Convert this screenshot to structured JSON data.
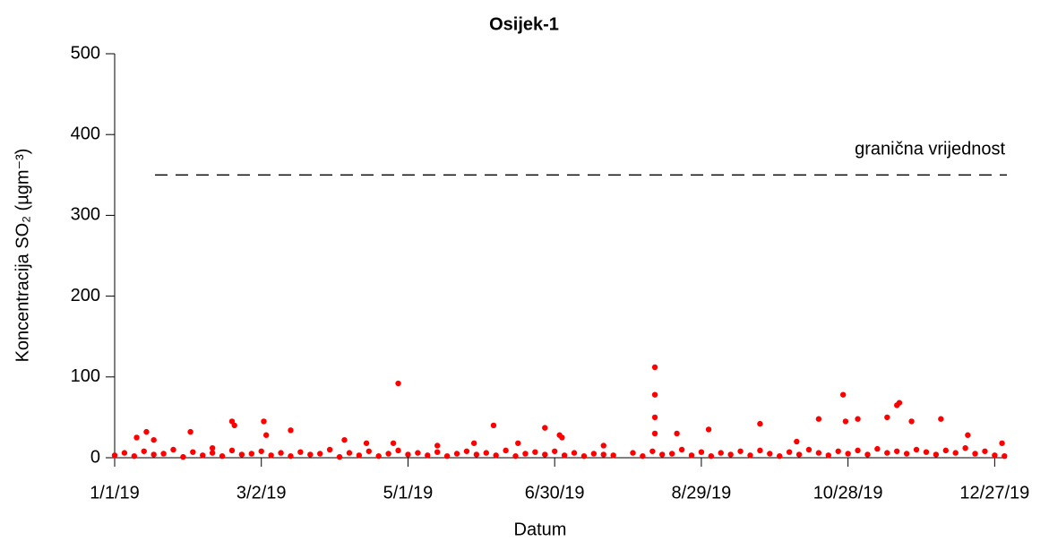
{
  "chart_data": {
    "type": "scatter",
    "title": "Osijek-1",
    "x_label": "Datum",
    "y_label": "Koncentracija SO₂ (µgm⁻³)",
    "color": "#ff0000",
    "x": [
      "2019-01-01",
      "2019-01-05",
      "2019-01-09",
      "2019-01-13",
      "2019-01-17",
      "2019-01-21",
      "2019-01-25",
      "2019-01-29",
      "2019-02-02",
      "2019-02-06",
      "2019-02-10",
      "2019-02-14",
      "2019-02-18",
      "2019-02-22",
      "2019-02-26",
      "2019-03-02",
      "2019-03-06",
      "2019-03-10",
      "2019-03-14",
      "2019-03-18",
      "2019-03-22",
      "2019-03-26",
      "2019-03-30",
      "2019-04-03",
      "2019-04-07",
      "2019-04-11",
      "2019-04-15",
      "2019-04-19",
      "2019-04-23",
      "2019-04-27",
      "2019-05-01",
      "2019-05-05",
      "2019-05-09",
      "2019-05-13",
      "2019-05-17",
      "2019-05-21",
      "2019-05-25",
      "2019-05-29",
      "2019-06-02",
      "2019-06-06",
      "2019-06-10",
      "2019-06-14",
      "2019-06-18",
      "2019-06-22",
      "2019-06-26",
      "2019-06-30",
      "2019-07-04",
      "2019-07-08",
      "2019-07-12",
      "2019-07-16",
      "2019-07-20",
      "2019-07-24",
      "2019-08-01",
      "2019-08-05",
      "2019-08-09",
      "2019-08-13",
      "2019-08-17",
      "2019-08-21",
      "2019-08-25",
      "2019-08-29",
      "2019-09-02",
      "2019-09-06",
      "2019-09-10",
      "2019-09-14",
      "2019-09-18",
      "2019-09-22",
      "2019-09-26",
      "2019-09-30",
      "2019-10-04",
      "2019-10-08",
      "2019-10-12",
      "2019-10-16",
      "2019-10-20",
      "2019-10-24",
      "2019-10-28",
      "2019-11-01",
      "2019-11-05",
      "2019-11-09",
      "2019-11-13",
      "2019-11-17",
      "2019-11-21",
      "2019-11-25",
      "2019-11-29",
      "2019-12-03",
      "2019-12-07",
      "2019-12-11",
      "2019-12-15",
      "2019-12-19",
      "2019-12-23",
      "2019-12-27",
      "2019-12-31",
      "2019-01-10",
      "2019-01-14",
      "2019-01-17",
      "2019-02-01",
      "2019-02-10",
      "2019-02-18",
      "2019-02-19",
      "2019-03-03",
      "2019-03-04",
      "2019-03-14",
      "2019-04-05",
      "2019-04-14",
      "2019-04-25",
      "2019-04-27",
      "2019-05-13",
      "2019-05-28",
      "2019-06-05",
      "2019-06-15",
      "2019-06-26",
      "2019-07-02",
      "2019-07-03",
      "2019-07-20",
      "2019-08-10",
      "2019-08-10",
      "2019-08-10",
      "2019-08-10",
      "2019-08-19",
      "2019-09-01",
      "2019-09-22",
      "2019-10-07",
      "2019-10-16",
      "2019-10-26",
      "2019-10-27",
      "2019-11-01",
      "2019-11-13",
      "2019-11-17",
      "2019-11-18",
      "2019-11-23",
      "2019-12-05",
      "2019-12-16",
      "2019-12-30"
    ],
    "values": [
      3,
      6,
      2,
      8,
      4,
      5,
      10,
      1,
      7,
      3,
      6,
      2,
      9,
      4,
      5,
      8,
      3,
      6,
      2,
      7,
      4,
      5,
      10,
      1,
      6,
      3,
      8,
      2,
      5,
      9,
      4,
      6,
      3,
      7,
      2,
      5,
      8,
      4,
      6,
      3,
      9,
      2,
      5,
      7,
      4,
      8,
      3,
      6,
      2,
      5,
      4,
      3,
      6,
      2,
      8,
      4,
      5,
      10,
      3,
      7,
      2,
      6,
      4,
      8,
      3,
      9,
      5,
      2,
      7,
      4,
      10,
      6,
      3,
      8,
      5,
      9,
      4,
      11,
      6,
      8,
      5,
      10,
      7,
      4,
      9,
      6,
      12,
      5,
      8,
      3,
      2,
      25,
      32,
      22,
      32,
      12,
      45,
      40,
      45,
      28,
      34,
      22,
      18,
      18,
      92,
      15,
      18,
      40,
      18,
      37,
      28,
      25,
      15,
      112,
      78,
      50,
      30,
      30,
      35,
      42,
      20,
      48,
      78,
      45,
      48,
      50,
      65,
      68,
      45,
      48,
      28,
      18
    ],
    "xlim": [
      "2019-01-01",
      "2020-01-01"
    ],
    "xticks": [
      {
        "value": "2019-01-01",
        "label": "1/1/19"
      },
      {
        "value": "2019-03-02",
        "label": "3/2/19"
      },
      {
        "value": "2019-05-01",
        "label": "5/1/19"
      },
      {
        "value": "2019-06-30",
        "label": "6/30/19"
      },
      {
        "value": "2019-08-29",
        "label": "8/29/19"
      },
      {
        "value": "2019-10-28",
        "label": "10/28/19"
      },
      {
        "value": "2019-12-27",
        "label": "12/27/19"
      }
    ],
    "ylim": [
      0,
      500
    ],
    "yticks": [
      0,
      100,
      200,
      300,
      400,
      500
    ],
    "limit_line": {
      "value": 350,
      "label": "granična vrijednost"
    }
  }
}
